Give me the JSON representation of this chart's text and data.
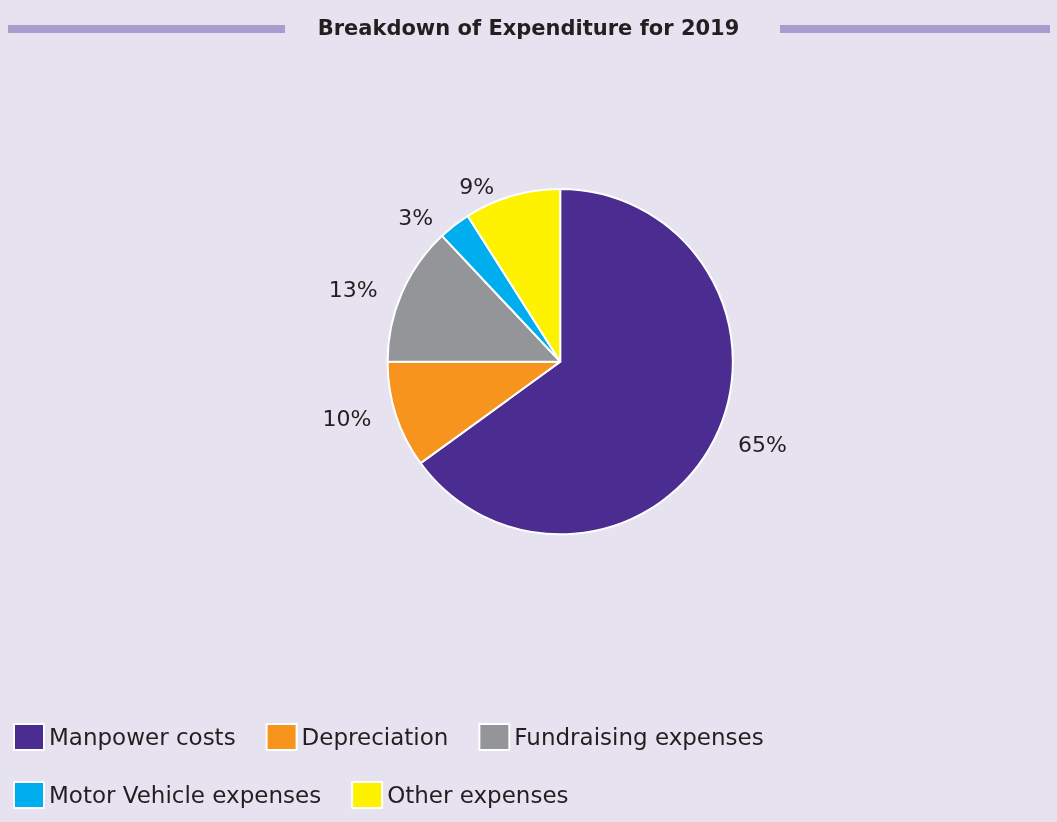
{
  "chart_data": {
    "type": "pie",
    "title": "Breakdown of Expenditure for 2019",
    "categories": [
      "Manpower costs",
      "Depreciation",
      "Fundraising expenses",
      "Motor Vehicle expenses",
      "Other expenses"
    ],
    "values": [
      65,
      10,
      13,
      3,
      9
    ],
    "colors": [
      "#4b2d91",
      "#f7941d",
      "#939598",
      "#00aeef",
      "#fff200"
    ],
    "value_labels": [
      "65%",
      "10%",
      "13%",
      "3%",
      "9%"
    ],
    "legend": "bottom left"
  }
}
